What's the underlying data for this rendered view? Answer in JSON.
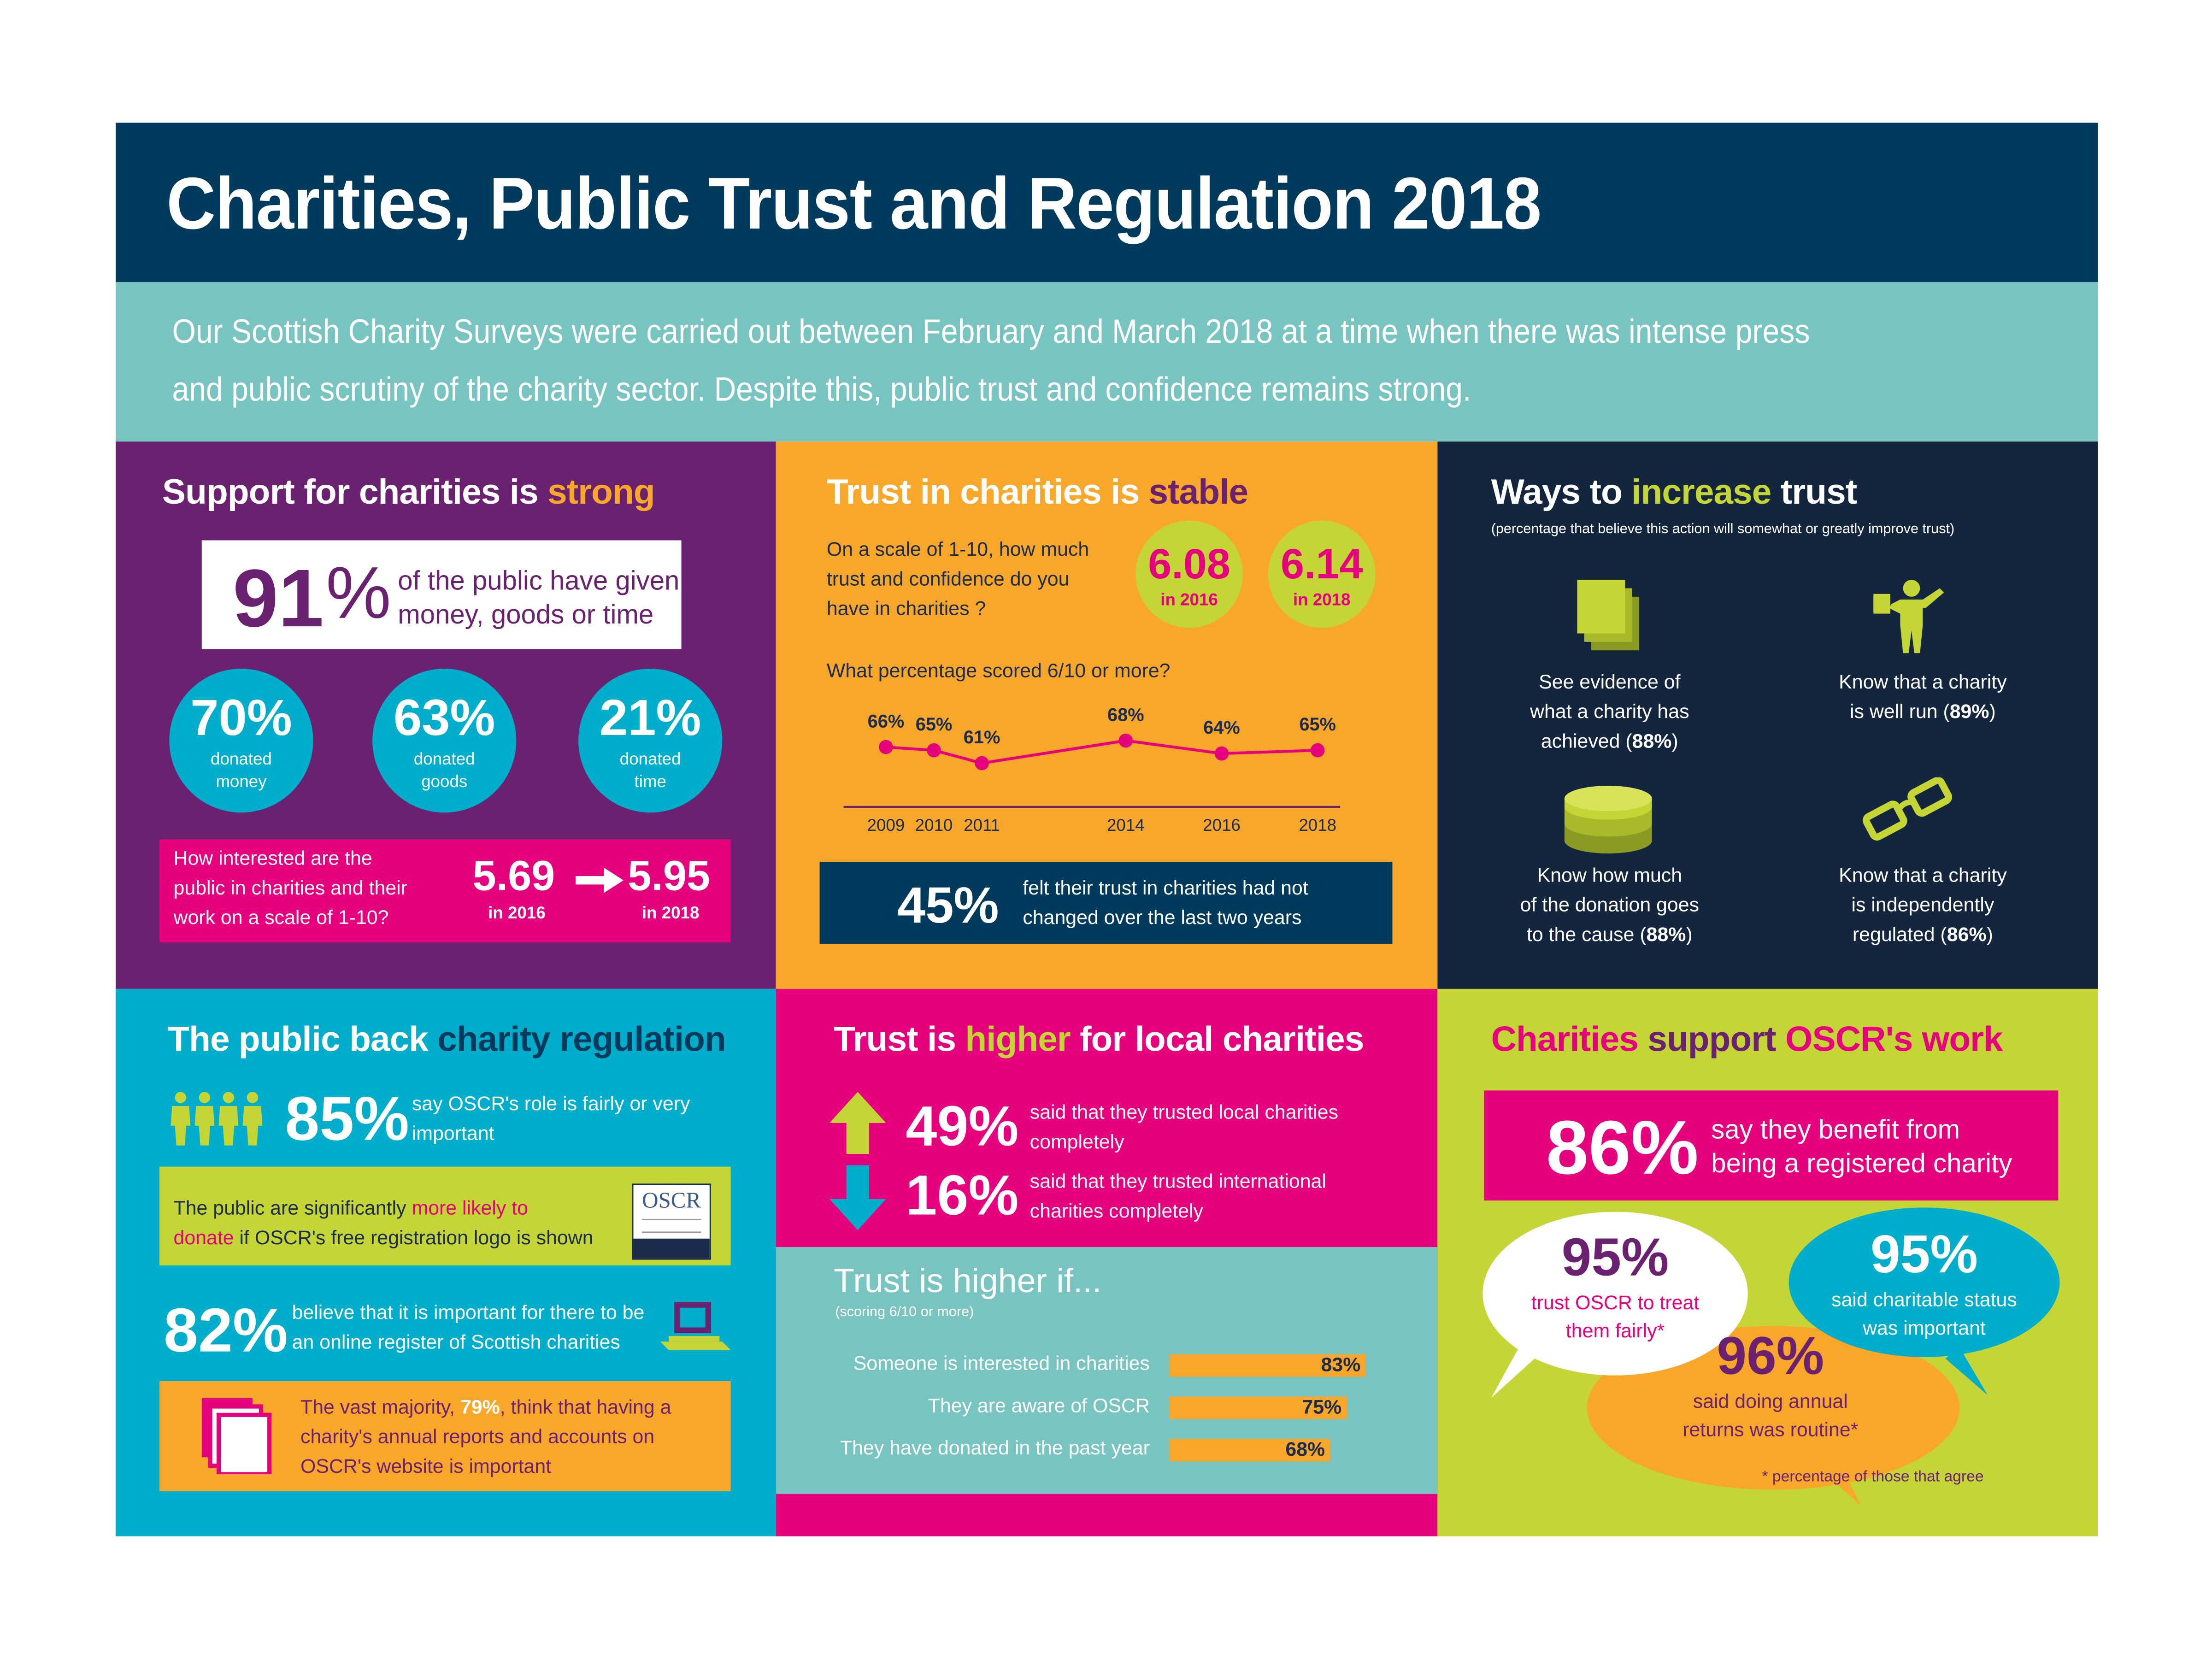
{
  "header": {
    "title": "Charities, Public Trust and Regulation 2018",
    "intro_line1": "Our Scottish Charity Surveys were carried out between February and March 2018 at a time when there was intense press",
    "intro_line2": "and public scrutiny of the charity sector. Despite this, public trust and confidence remains strong."
  },
  "colors": {
    "navy": "#003a5d",
    "teal": "#78c4c0",
    "purple": "#6a2170",
    "orange": "#f8a72a",
    "dark_navy": "#13263d",
    "cyan": "#00aecc",
    "magenta": "#e6007e",
    "lime": "#c5d535"
  },
  "support": {
    "title_prefix": "Support for charities is ",
    "title_emph": "strong",
    "headline_value": "91",
    "headline_unit": "%",
    "headline_line1": "of the public have given",
    "headline_line2": "money, goods or time",
    "circles": [
      {
        "value": "70%",
        "label1": "donated",
        "label2": "money"
      },
      {
        "value": "63%",
        "label1": "donated",
        "label2": "goods"
      },
      {
        "value": "21%",
        "label1": "donated",
        "label2": "time"
      }
    ],
    "interest_line1": "How interested are the",
    "interest_line2": "public in charities and their",
    "interest_line3": "work on a scale of 1-10?",
    "interest_2016": "5.69",
    "interest_2016_label": "in 2016",
    "interest_2018": "5.95",
    "interest_2018_label": "in 2018"
  },
  "trust": {
    "title_prefix": "Trust in charities is ",
    "title_emph": "stable",
    "question_line1": "On a scale of 1-10, how much",
    "question_line2": "trust and confidence do you",
    "question_line3": "have in charities ?",
    "score_2016": "6.08",
    "score_2016_label": "in 2016",
    "score_2018": "6.14",
    "score_2018_label": "in 2018",
    "pct_question": "What percentage scored 6/10 or more?",
    "footer_value": "45%",
    "footer_line1": "felt their trust in charities had not",
    "footer_line2": "changed over the last two years"
  },
  "chart_data": {
    "type": "line",
    "x": [
      "2009",
      "2010",
      "2011",
      "2014",
      "2016",
      "2018"
    ],
    "x_numeric": [
      2009,
      2010,
      2011,
      2014,
      2016,
      2018
    ],
    "values": [
      66,
      65,
      61,
      68,
      64,
      65
    ],
    "data_labels": [
      "66%",
      "65%",
      "61%",
      "68%",
      "64%",
      "65%"
    ],
    "title": "What percentage scored 6/10 or more?",
    "xlabel": "",
    "ylabel": "",
    "grid": false,
    "line_color": "#e6007e"
  },
  "ways": {
    "title_prefix": "Ways to ",
    "title_emph": "increase",
    "title_suffix": " trust",
    "subtitle": "(percentage that believe this action will somewhat or greatly improve trust)",
    "items": [
      {
        "icon": "documents-icon",
        "line1": "See evidence of",
        "line2": "what a charity has",
        "line3_pre": "achieved (",
        "pct": "88%",
        "line3_post": ")"
      },
      {
        "icon": "presenter-icon",
        "line1": "Know that a charity",
        "line2_pre": "is well run (",
        "pct": "89%",
        "line2_post": ")"
      },
      {
        "icon": "coins-icon",
        "line1": "Know how much",
        "line2": "of the donation goes",
        "line3_pre": "to the cause (",
        "pct": "88%",
        "line3_post": ")"
      },
      {
        "icon": "glasses-icon",
        "line1": "Know that a charity",
        "line2": "is independently",
        "line3_pre": "regulated (",
        "pct": "86%",
        "line3_post": ")"
      }
    ]
  },
  "regulation": {
    "title_prefix": "The public back ",
    "title_emph": "charity regulation",
    "stat1_value": "85%",
    "stat1_line1": "say OSCR's role is fairly or very",
    "stat1_line2": "important",
    "logo_line_pre": "The public are significantly ",
    "logo_line_emph1": "more likely to",
    "logo_line_emph2": "donate",
    "logo_line_post": " if OSCR's free registration logo is shown",
    "logo_brand": "OSCR",
    "stat2_value": "82%",
    "stat2_line1": "believe that it is important for there to be",
    "stat2_line2": "an online register of Scottish charities",
    "reports_line1_pre": "The vast majority, ",
    "reports_pct": "79%",
    "reports_line1_post": ", think that having a",
    "reports_line2": "charity's annual reports and accounts on",
    "reports_line3": "OSCR's website is important"
  },
  "local": {
    "title_prefix": "Trust is ",
    "title_emph": "higher",
    "title_suffix": " for local charities",
    "up_value": "49%",
    "up_line1": "said that they trusted local charities",
    "up_line2": "completely",
    "down_value": "16%",
    "down_line1": "said that they trusted international",
    "down_line2": "charities completely",
    "higher_title": "Trust is higher if...",
    "higher_subtitle": "(scoring 6/10 or more)",
    "bars": [
      {
        "label": "Someone is interested in charities",
        "value": 83,
        "text": "83%"
      },
      {
        "label": "They are aware of OSCR",
        "value": 75,
        "text": "75%"
      },
      {
        "label": "They have donated in the past year",
        "value": 68,
        "text": "68%"
      }
    ]
  },
  "oscr": {
    "title_w1": "Charities",
    "title_w2": " support ",
    "title_w3": "OSCR's work",
    "headline_value": "86%",
    "headline_line1": "say they benefit from",
    "headline_line2": "being a registered charity",
    "bubble1_value": "95%",
    "bubble1_line1": "trust OSCR to treat",
    "bubble1_line2": "them fairly*",
    "bubble2_value": "95%",
    "bubble2_line1": "said charitable status",
    "bubble2_line2": "was important",
    "bubble3_value": "96%",
    "bubble3_line1": "said doing annual",
    "bubble3_line2": "returns was routine*",
    "footnote": "* percentage of those that agree"
  }
}
